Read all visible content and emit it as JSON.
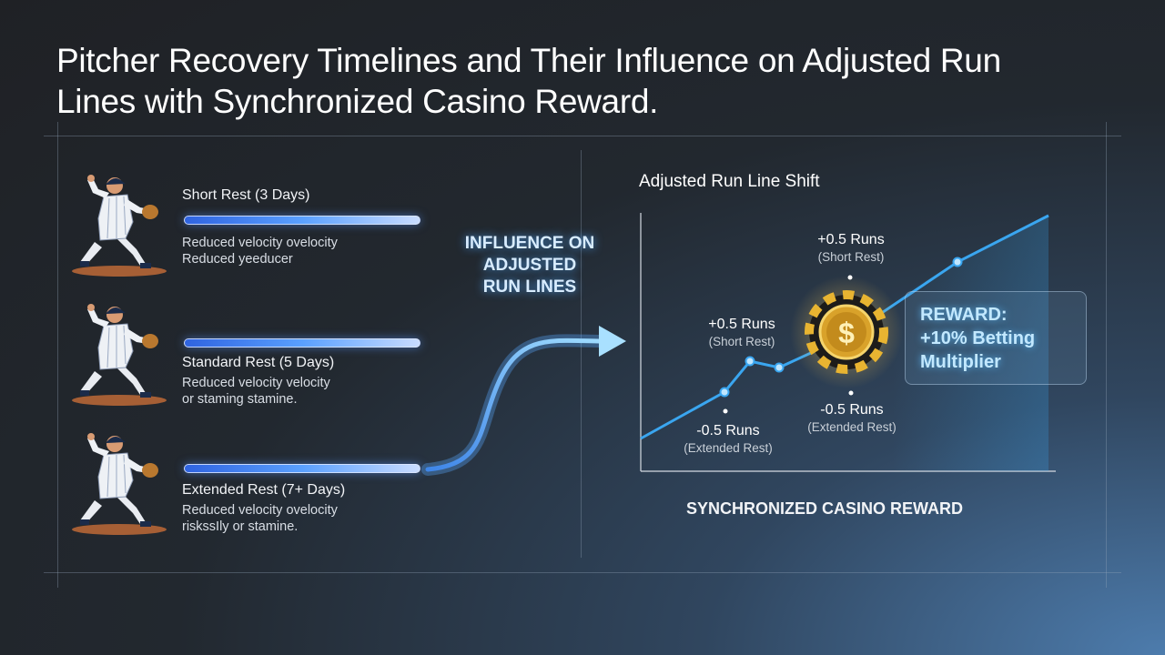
{
  "title": "Pitcher Recovery Timelines and Their Influence on Adjusted Run Lines with Synchronized Casino Reward.",
  "rest_levels": [
    {
      "label": "Short Rest (3 Days)",
      "desc_line1": "Reduced velocity ovelocity",
      "desc_line2": "Reduced yeeducer"
    },
    {
      "label": "Standard Rest (5 Days)",
      "desc_line1": "Reduced velocity velocity",
      "desc_line2": "or staming stamine."
    },
    {
      "label": "Extended Rest (7+ Days)",
      "desc_line1": "Reduced velocity ovelocity",
      "desc_line2": "riskssIly or stamine."
    }
  ],
  "influence_label": [
    "INFLUENCE ON",
    "ADJUSTED",
    "RUN LINES"
  ],
  "chart_data": {
    "type": "line",
    "title": "Adjusted Run Line Shift",
    "annotations": [
      {
        "value": "+0.5 Runs",
        "sub": "(Short Rest)"
      },
      {
        "value": "+0.5 Runs",
        "sub": "(Short Rest)"
      },
      {
        "value": "-0.5 Runs",
        "sub": "(Extended Rest)"
      },
      {
        "value": "-0.5 Runs",
        "sub": "(Extended Rest)"
      }
    ]
  },
  "reward": {
    "line1": "REWARD:",
    "line2": "+10% Betting",
    "line3": "Multiplier"
  },
  "footer": "SYNCHRONIZED CASINO REWARD",
  "colors": {
    "accent_blue": "#3aa6f0",
    "glow_blue": "#5ab0ff",
    "coin_gold": "#e8b431",
    "background": "#23272c"
  }
}
